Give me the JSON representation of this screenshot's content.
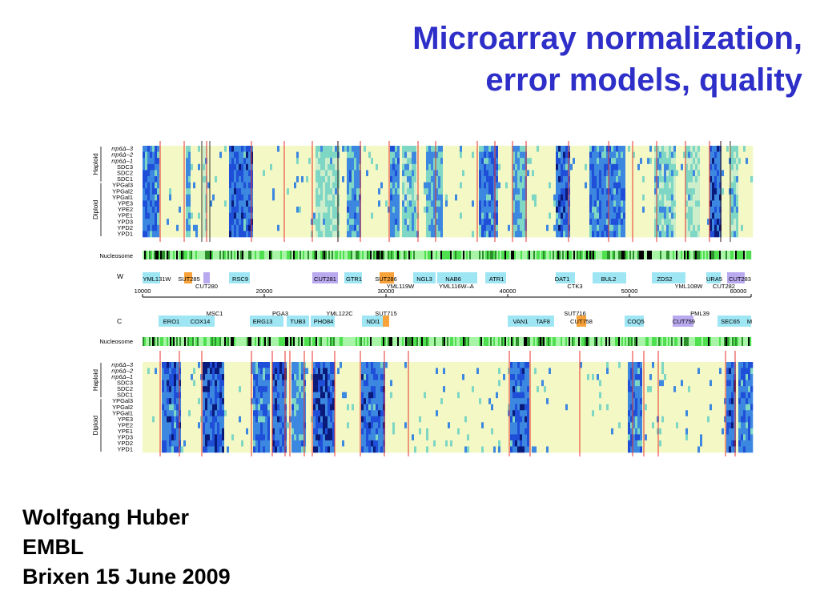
{
  "title": {
    "line1": "Microarray normalization,",
    "line2": "error models, quality"
  },
  "author": {
    "name": "Wolfgang Huber",
    "institute": "EMBL",
    "event": "Brixen 15 June 2009"
  },
  "figure": {
    "row_labels": [
      "rrp6Δ–3",
      "rrp6Δ–2",
      "rrp6Δ–1",
      "SDC3",
      "SDC2",
      "SDC1",
      "YPGal3",
      "YPGal2",
      "YPGal1",
      "YPE3",
      "YPE2",
      "YPE1",
      "YPD3",
      "YPD2",
      "YPD1"
    ],
    "groups": {
      "haploid": "Haploid",
      "diploid": "Diploid"
    },
    "nucleosome_label": "Nucleosome",
    "strand_w": "W",
    "strand_c": "C",
    "axis_ticks": [
      "10000",
      "20000",
      "30000",
      "40000",
      "50000",
      "60000"
    ],
    "genes_w_top": [
      "YML131W",
      "SUT285",
      "RSC9",
      "CUT281",
      "GTR1",
      "SUT286",
      "NGL3",
      "NAB6",
      "ATR1",
      "DAT1",
      "BUL2",
      "ZDS2",
      "URA5",
      "CUT283"
    ],
    "genes_w_bottom": [
      "CUT280",
      "YML119W",
      "YML116W–A",
      "CTK3",
      "YML108W",
      "CUT282"
    ],
    "genes_c_top": [
      "MSC1",
      "PGA3",
      "YML122C",
      "SUT715",
      "SUT716",
      "PML39"
    ],
    "genes_c_row": [
      "ERO1",
      "COX14",
      "ERG13",
      "TUB3",
      "PHO84",
      "NDI1",
      "VAN1",
      "TAF8",
      "CUT758",
      "COQ5",
      "CUT759",
      "SEC65",
      "M"
    ],
    "colors": {
      "title": "#2e2ec8",
      "low": "#f4f8c4",
      "mid": "#7ed6c4",
      "high": "#1f4fd8",
      "very_high": "#0a1a7a",
      "boundary": "#e8302c",
      "gene_box": "#9fe6f4",
      "sut_box": "#f7a23a",
      "cut_box": "#b9a9ef",
      "nucleosome_green": "#4fe04f"
    }
  }
}
